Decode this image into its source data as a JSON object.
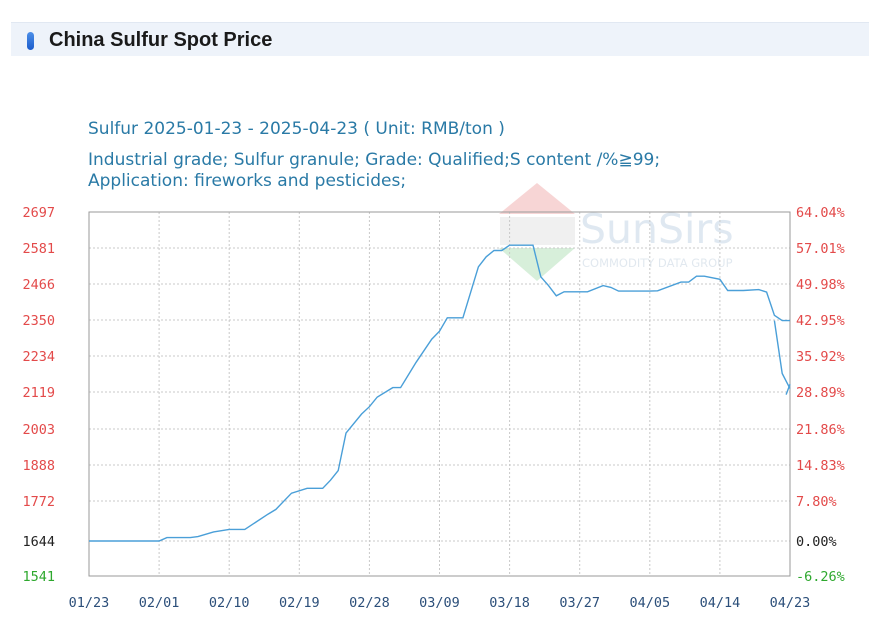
{
  "header": {
    "title": "China Sulfur Spot Price",
    "accent_color": "#1b5ccc",
    "icon": "pill-marker-icon"
  },
  "watermark": {
    "brand": "SunSirs",
    "tagline": "COMMODITY DATA GROUP"
  },
  "chart_data": {
    "type": "line",
    "title": "Sulfur 2025-01-23 - 2025-04-23    ( Unit: RMB/ton )",
    "subtitle_lines": [
      "Industrial grade; Sulfur granule; Grade: Qualified;S content /%≧99;",
      "Application: fireworks and pesticides;"
    ],
    "unit": "RMB/ton",
    "x_tick_labels": [
      "01/23",
      "02/01",
      "02/10",
      "02/19",
      "02/28",
      "03/09",
      "03/18",
      "03/27",
      "04/05",
      "04/14",
      "04/23"
    ],
    "x_range_days": [
      0,
      90
    ],
    "y_tick_labels": [
      "2697",
      "2581",
      "2466",
      "2350",
      "2234",
      "2119",
      "2003",
      "1888",
      "1772",
      "1644",
      "1541"
    ],
    "y_tick_colors": [
      "#e34a4a",
      "#e34a4a",
      "#e34a4a",
      "#e34a4a",
      "#e34a4a",
      "#e34a4a",
      "#e34a4a",
      "#e34a4a",
      "#e34a4a",
      "#222222",
      "#2ea82e"
    ],
    "y2_tick_labels": [
      "64.04%",
      "57.01%",
      "49.98%",
      "42.95%",
      "35.92%",
      "28.89%",
      "21.86%",
      "14.83%",
      "7.80%",
      "0.00%",
      "-6.26%"
    ],
    "y2_tick_colors": [
      "#e34a4a",
      "#e34a4a",
      "#e34a4a",
      "#e34a4a",
      "#e34a4a",
      "#e34a4a",
      "#e34a4a",
      "#e34a4a",
      "#e34a4a",
      "#222222",
      "#2ea82e"
    ],
    "ylim": [
      1541,
      2697
    ],
    "baseline": 1644,
    "grid": true,
    "line_color": "#4a9fd8",
    "series": [
      {
        "x": [
          0,
          9,
          10,
          13,
          14,
          16,
          18,
          20,
          23,
          24,
          26,
          28,
          30,
          31,
          32,
          33,
          35,
          36,
          37,
          39,
          40,
          42,
          44,
          45,
          46,
          48,
          50,
          51,
          52,
          53,
          54,
          55,
          56,
          57,
          58,
          59,
          60,
          61,
          62,
          64,
          66,
          67,
          68,
          69,
          71,
          72,
          73,
          76,
          77,
          78,
          79,
          81,
          82,
          84,
          86,
          87,
          88,
          89,
          90
        ],
        "y": [
          1644,
          1644,
          1655,
          1655,
          1658,
          1673,
          1681,
          1681,
          1730,
          1745,
          1797,
          1813,
          1813,
          1839,
          1870,
          1990,
          2050,
          2073,
          2103,
          2133,
          2133,
          2214,
          2288,
          2314,
          2357,
          2357,
          2521,
          2553,
          2573,
          2573,
          2590,
          2590,
          2590,
          2590,
          2489,
          2461,
          2428,
          2441,
          2441,
          2441,
          2461,
          2455,
          2443,
          2443,
          2443,
          2443,
          2444,
          2472,
          2472,
          2491,
          2491,
          2481,
          2445,
          2445,
          2448,
          2440,
          2365,
          2348,
          2348
        ]
      },
      {
        "x": [
          88,
          89,
          90
        ],
        "y": [
          2348,
          2178,
          2130
        ]
      },
      {
        "x": [
          89.5,
          90
        ],
        "y": [
          2111,
          2144
        ]
      }
    ]
  }
}
